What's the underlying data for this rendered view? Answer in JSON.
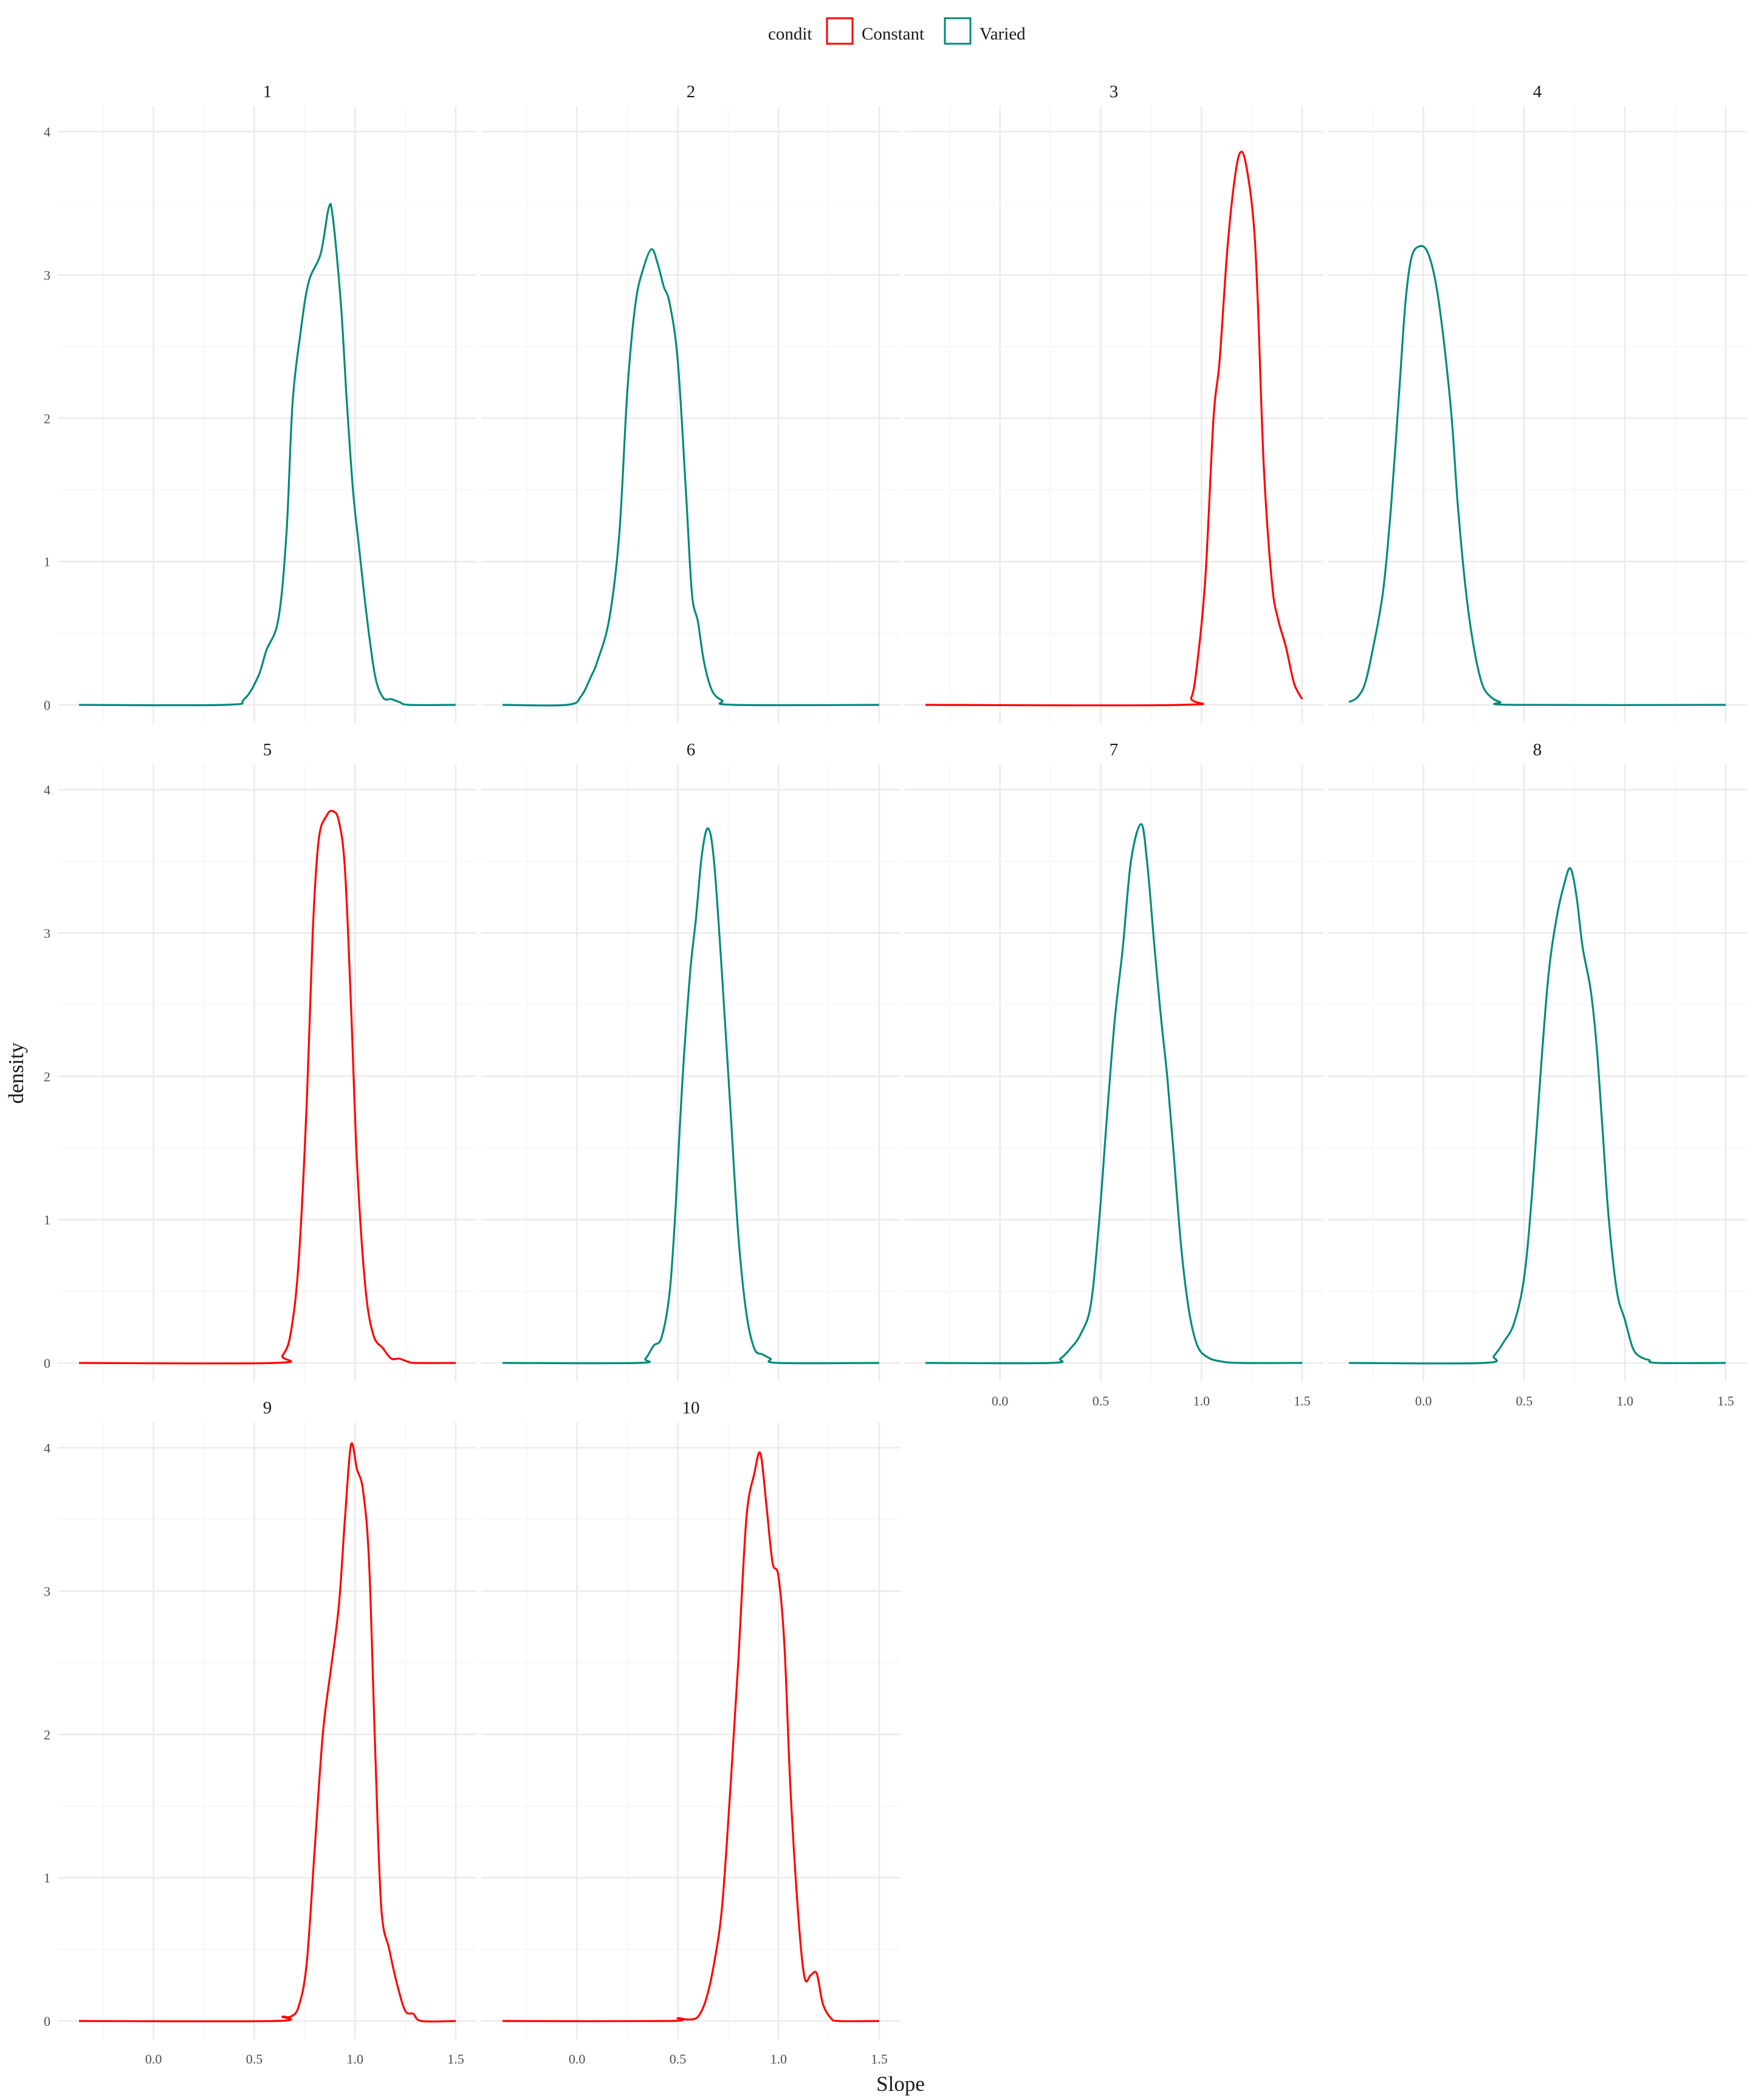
{
  "chart_data": {
    "type": "line",
    "chart_kind": "faceted density",
    "xlabel": "Slope",
    "ylabel": "density",
    "xlim": [
      -0.37,
      1.5
    ],
    "ylim": [
      0,
      4.1
    ],
    "x_ticks": [
      0.0,
      0.5,
      1.0,
      1.5
    ],
    "x_tick_labels": [
      "0.0",
      "0.5",
      "1.0",
      "1.5"
    ],
    "y_ticks": [
      0,
      1,
      2,
      3,
      4
    ],
    "y_tick_labels": [
      "0",
      "1",
      "2",
      "3",
      "4"
    ],
    "grid": true,
    "legend": {
      "title": "condit",
      "placement": "top",
      "entries": [
        {
          "name": "Constant",
          "color": "#ff0000"
        },
        {
          "name": "Varied",
          "color": "#008b7b"
        }
      ]
    },
    "layout": {
      "columns": 4,
      "rows": 3
    },
    "facets": [
      {
        "label": "1",
        "condit": "Varied",
        "x_start": -0.37,
        "x_end": 1.5,
        "points": [
          [
            -0.37,
            0
          ],
          [
            0.35,
            0
          ],
          [
            0.45,
            0.04
          ],
          [
            0.52,
            0.2
          ],
          [
            0.56,
            0.38
          ],
          [
            0.62,
            0.6
          ],
          [
            0.66,
            1.2
          ],
          [
            0.69,
            2.1
          ],
          [
            0.73,
            2.6
          ],
          [
            0.77,
            2.95
          ],
          [
            0.83,
            3.15
          ],
          [
            0.87,
            3.47
          ],
          [
            0.89,
            3.4
          ],
          [
            0.93,
            2.8
          ],
          [
            0.96,
            2.1
          ],
          [
            0.99,
            1.5
          ],
          [
            1.02,
            1.1
          ],
          [
            1.06,
            0.6
          ],
          [
            1.1,
            0.2
          ],
          [
            1.14,
            0.05
          ],
          [
            1.18,
            0.04
          ],
          [
            1.22,
            0.02
          ],
          [
            1.27,
            0
          ],
          [
            1.5,
            0
          ]
        ]
      },
      {
        "label": "2",
        "condit": "Varied",
        "x_start": -0.37,
        "x_end": 1.5,
        "points": [
          [
            -0.37,
            0
          ],
          [
            -0.05,
            0
          ],
          [
            0.02,
            0.06
          ],
          [
            0.07,
            0.2
          ],
          [
            0.1,
            0.3
          ],
          [
            0.16,
            0.6
          ],
          [
            0.21,
            1.2
          ],
          [
            0.25,
            2.2
          ],
          [
            0.29,
            2.8
          ],
          [
            0.33,
            3.05
          ],
          [
            0.37,
            3.18
          ],
          [
            0.4,
            3.08
          ],
          [
            0.43,
            2.92
          ],
          [
            0.46,
            2.8
          ],
          [
            0.5,
            2.4
          ],
          [
            0.54,
            1.5
          ],
          [
            0.57,
            0.78
          ],
          [
            0.6,
            0.58
          ],
          [
            0.63,
            0.3
          ],
          [
            0.67,
            0.1
          ],
          [
            0.72,
            0.03
          ],
          [
            0.78,
            0
          ],
          [
            1.5,
            0
          ]
        ]
      },
      {
        "label": "3",
        "condit": "Constant",
        "x_start": -0.37,
        "x_end": 1.5,
        "points": [
          [
            -0.37,
            0
          ],
          [
            0.9,
            0
          ],
          [
            0.95,
            0.05
          ],
          [
            0.98,
            0.3
          ],
          [
            1.02,
            0.9
          ],
          [
            1.06,
            2.0
          ],
          [
            1.09,
            2.4
          ],
          [
            1.13,
            3.2
          ],
          [
            1.17,
            3.72
          ],
          [
            1.2,
            3.86
          ],
          [
            1.23,
            3.7
          ],
          [
            1.26,
            3.35
          ],
          [
            1.28,
            2.8
          ],
          [
            1.31,
            1.65
          ],
          [
            1.35,
            0.85
          ],
          [
            1.38,
            0.6
          ],
          [
            1.42,
            0.4
          ],
          [
            1.46,
            0.15
          ],
          [
            1.5,
            0.04
          ]
        ]
      },
      {
        "label": "4",
        "condit": "Varied",
        "x_start": -0.37,
        "x_end": 1.5,
        "points": [
          [
            -0.37,
            0.02
          ],
          [
            -0.33,
            0.05
          ],
          [
            -0.29,
            0.15
          ],
          [
            -0.25,
            0.4
          ],
          [
            -0.2,
            0.8
          ],
          [
            -0.16,
            1.4
          ],
          [
            -0.12,
            2.2
          ],
          [
            -0.09,
            2.8
          ],
          [
            -0.06,
            3.12
          ],
          [
            -0.02,
            3.2
          ],
          [
            0.02,
            3.16
          ],
          [
            0.06,
            2.95
          ],
          [
            0.1,
            2.55
          ],
          [
            0.14,
            2.0
          ],
          [
            0.17,
            1.4
          ],
          [
            0.21,
            0.8
          ],
          [
            0.25,
            0.4
          ],
          [
            0.29,
            0.15
          ],
          [
            0.33,
            0.06
          ],
          [
            0.38,
            0.02
          ],
          [
            0.45,
            0
          ],
          [
            1.5,
            0
          ]
        ]
      },
      {
        "label": "5",
        "condit": "Constant",
        "x_start": -0.37,
        "x_end": 1.5,
        "points": [
          [
            -0.37,
            0
          ],
          [
            0.6,
            0
          ],
          [
            0.64,
            0.05
          ],
          [
            0.68,
            0.2
          ],
          [
            0.72,
            0.7
          ],
          [
            0.76,
            1.8
          ],
          [
            0.79,
            3.0
          ],
          [
            0.82,
            3.65
          ],
          [
            0.86,
            3.82
          ],
          [
            0.89,
            3.85
          ],
          [
            0.92,
            3.78
          ],
          [
            0.95,
            3.45
          ],
          [
            0.98,
            2.5
          ],
          [
            1.01,
            1.4
          ],
          [
            1.05,
            0.55
          ],
          [
            1.09,
            0.2
          ],
          [
            1.14,
            0.1
          ],
          [
            1.18,
            0.03
          ],
          [
            1.22,
            0.03
          ],
          [
            1.26,
            0.01
          ],
          [
            1.3,
            0
          ],
          [
            1.5,
            0
          ]
        ]
      },
      {
        "label": "6",
        "condit": "Varied",
        "x_start": -0.37,
        "x_end": 1.5,
        "points": [
          [
            -0.37,
            0
          ],
          [
            0.3,
            0
          ],
          [
            0.34,
            0.03
          ],
          [
            0.38,
            0.12
          ],
          [
            0.42,
            0.18
          ],
          [
            0.46,
            0.5
          ],
          [
            0.49,
            1.1
          ],
          [
            0.52,
            1.9
          ],
          [
            0.56,
            2.7
          ],
          [
            0.59,
            3.1
          ],
          [
            0.62,
            3.55
          ],
          [
            0.65,
            3.73
          ],
          [
            0.68,
            3.5
          ],
          [
            0.72,
            2.7
          ],
          [
            0.76,
            1.8
          ],
          [
            0.8,
            0.9
          ],
          [
            0.84,
            0.35
          ],
          [
            0.88,
            0.1
          ],
          [
            0.92,
            0.06
          ],
          [
            0.96,
            0.03
          ],
          [
            1.0,
            0
          ],
          [
            1.5,
            0
          ]
        ]
      },
      {
        "label": "7",
        "condit": "Varied",
        "x_start": -0.37,
        "x_end": 1.5,
        "points": [
          [
            -0.37,
            0
          ],
          [
            0.25,
            0
          ],
          [
            0.3,
            0.03
          ],
          [
            0.35,
            0.1
          ],
          [
            0.4,
            0.2
          ],
          [
            0.45,
            0.4
          ],
          [
            0.49,
            0.95
          ],
          [
            0.53,
            1.7
          ],
          [
            0.57,
            2.4
          ],
          [
            0.61,
            2.9
          ],
          [
            0.65,
            3.5
          ],
          [
            0.7,
            3.76
          ],
          [
            0.73,
            3.5
          ],
          [
            0.77,
            2.85
          ],
          [
            0.8,
            2.4
          ],
          [
            0.83,
            2.0
          ],
          [
            0.86,
            1.5
          ],
          [
            0.9,
            0.8
          ],
          [
            0.94,
            0.35
          ],
          [
            0.98,
            0.12
          ],
          [
            1.03,
            0.04
          ],
          [
            1.1,
            0.01
          ],
          [
            1.2,
            0
          ],
          [
            1.5,
            0
          ]
        ]
      },
      {
        "label": "8",
        "condit": "Varied",
        "x_start": -0.37,
        "x_end": 1.5,
        "points": [
          [
            -0.37,
            0
          ],
          [
            0.3,
            0
          ],
          [
            0.35,
            0.05
          ],
          [
            0.4,
            0.15
          ],
          [
            0.45,
            0.28
          ],
          [
            0.5,
            0.6
          ],
          [
            0.54,
            1.2
          ],
          [
            0.58,
            2.0
          ],
          [
            0.62,
            2.7
          ],
          [
            0.66,
            3.1
          ],
          [
            0.7,
            3.35
          ],
          [
            0.73,
            3.45
          ],
          [
            0.76,
            3.25
          ],
          [
            0.79,
            2.9
          ],
          [
            0.83,
            2.6
          ],
          [
            0.86,
            2.2
          ],
          [
            0.89,
            1.6
          ],
          [
            0.92,
            1.0
          ],
          [
            0.96,
            0.5
          ],
          [
            1.0,
            0.3
          ],
          [
            1.04,
            0.1
          ],
          [
            1.08,
            0.04
          ],
          [
            1.12,
            0.02
          ],
          [
            1.16,
            0
          ],
          [
            1.5,
            0
          ]
        ]
      },
      {
        "label": "9",
        "condit": "Constant",
        "x_start": -0.37,
        "x_end": 1.5,
        "points": [
          [
            -0.37,
            0
          ],
          [
            0.6,
            0
          ],
          [
            0.64,
            0.03
          ],
          [
            0.68,
            0.03
          ],
          [
            0.72,
            0.1
          ],
          [
            0.76,
            0.4
          ],
          [
            0.8,
            1.2
          ],
          [
            0.84,
            2.0
          ],
          [
            0.88,
            2.45
          ],
          [
            0.92,
            2.9
          ],
          [
            0.95,
            3.5
          ],
          [
            0.98,
            4.02
          ],
          [
            1.01,
            3.85
          ],
          [
            1.04,
            3.7
          ],
          [
            1.07,
            3.2
          ],
          [
            1.1,
            1.9
          ],
          [
            1.13,
            0.8
          ],
          [
            1.17,
            0.5
          ],
          [
            1.21,
            0.25
          ],
          [
            1.25,
            0.07
          ],
          [
            1.29,
            0.05
          ],
          [
            1.33,
            0
          ],
          [
            1.5,
            0
          ]
        ]
      },
      {
        "label": "10",
        "condit": "Constant",
        "x_start": -0.37,
        "x_end": 1.5,
        "points": [
          [
            -0.37,
            0
          ],
          [
            0.45,
            0
          ],
          [
            0.5,
            0.02
          ],
          [
            0.55,
            0.01
          ],
          [
            0.6,
            0.03
          ],
          [
            0.64,
            0.15
          ],
          [
            0.68,
            0.4
          ],
          [
            0.72,
            0.8
          ],
          [
            0.76,
            1.6
          ],
          [
            0.8,
            2.5
          ],
          [
            0.84,
            3.5
          ],
          [
            0.88,
            3.82
          ],
          [
            0.91,
            3.96
          ],
          [
            0.94,
            3.6
          ],
          [
            0.97,
            3.2
          ],
          [
            1.0,
            3.1
          ],
          [
            1.03,
            2.6
          ],
          [
            1.06,
            1.6
          ],
          [
            1.1,
            0.7
          ],
          [
            1.13,
            0.3
          ],
          [
            1.16,
            0.32
          ],
          [
            1.19,
            0.33
          ],
          [
            1.22,
            0.12
          ],
          [
            1.26,
            0.02
          ],
          [
            1.3,
            0
          ],
          [
            1.5,
            0
          ]
        ]
      }
    ]
  }
}
